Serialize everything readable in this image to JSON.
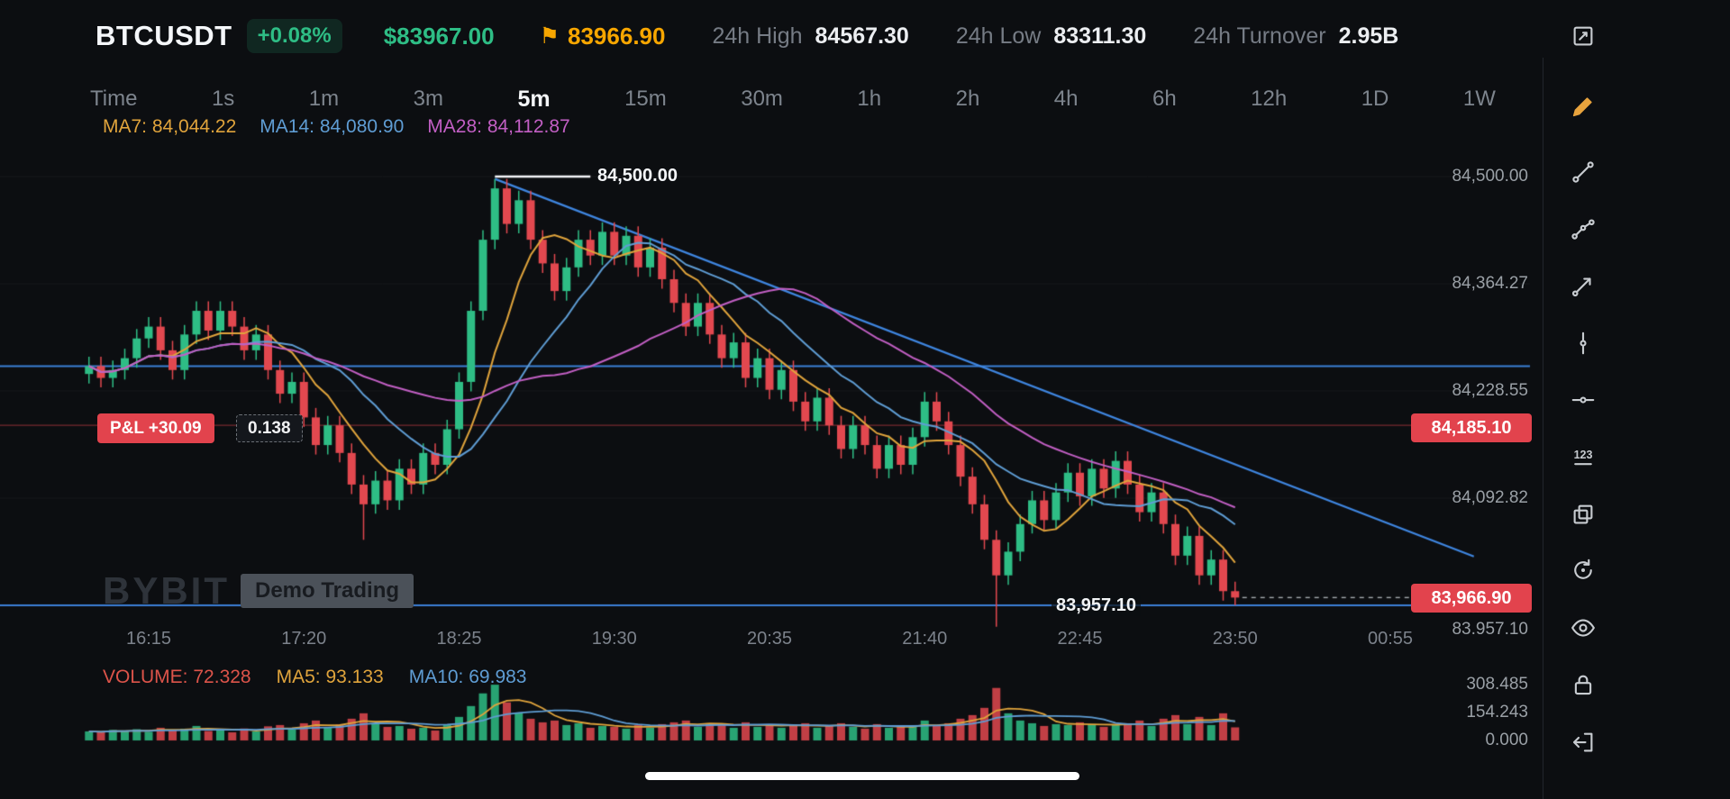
{
  "colors": {
    "bg": "#0c0e11",
    "green": "#2ebd85",
    "red": "#e2484f",
    "ma7": "#e0a43c",
    "ma14": "#5f9dd4",
    "ma28": "#c25fc4",
    "blue_line": "#3b7fd6",
    "trend_line": "#3f86e0",
    "tag_red_bg": "#e2434d",
    "accent_orange": "#f7a600"
  },
  "header": {
    "symbol": "BTCUSDT",
    "change_badge": "+0.08%",
    "usd_price": "$83967.00",
    "flag_price": "83966.90",
    "stats": [
      {
        "label": "24h High",
        "value": "84567.30"
      },
      {
        "label": "24h Low",
        "value": "83311.30"
      },
      {
        "label": "24h Turnover",
        "value": "2.95B"
      }
    ]
  },
  "tabs": {
    "items": [
      "Time",
      "1s",
      "1m",
      "3m",
      "5m",
      "15m",
      "30m",
      "1h",
      "2h",
      "4h",
      "6h",
      "12h",
      "1D",
      "1W"
    ],
    "selected": "5m"
  },
  "indicators": {
    "price_mas": [
      {
        "label": "MA7:",
        "value": "84,044.22"
      },
      {
        "label": "MA14:",
        "value": "84,080.90"
      },
      {
        "label": "MA28:",
        "value": "84,112.87"
      }
    ],
    "volume_row": [
      {
        "label": "VOLUME:",
        "value": "72.328"
      },
      {
        "label": "MA5:",
        "value": "93.133"
      },
      {
        "label": "MA10:",
        "value": "69.983"
      }
    ]
  },
  "overlay_labels": {
    "high_level": "84,500.00",
    "pnl": "P&L +30.09",
    "qty": "0.138",
    "entry_tag": "84,185.10",
    "last_tag": "83,966.90",
    "line_label": "83,957.10",
    "partial_axis_label": "83,957.10"
  },
  "watermark": {
    "brand": "BYBIT",
    "badge": "Demo Trading"
  },
  "toolbar": [
    "screenshot-icon",
    "pencil-icon",
    "trendline-icon",
    "multipoint-icon",
    "trend-arrow-icon",
    "vertical-line-icon",
    "horizontal-line-icon",
    "numbers-icon",
    "copy-icon",
    "undo-icon",
    "eye-icon",
    "lock-icon",
    "exit-icon"
  ],
  "chart_data": {
    "type": "candlestick",
    "symbol": "BTCUSDT",
    "interval": "5m",
    "x_tick_labels": [
      "16:15",
      "17:20",
      "18:25",
      "19:30",
      "20:35",
      "21:40",
      "22:45",
      "23:50",
      "00:55"
    ],
    "x_tick_indices": [
      5,
      18,
      31,
      44,
      57,
      70,
      83,
      96,
      109
    ],
    "y_axis": {
      "tick_labels": [
        "84,500.00",
        "84,364.27",
        "84,228.55",
        "84,092.82",
        "83,957.10"
      ],
      "tick_values": [
        84500.0,
        84364.27,
        84228.55,
        84092.82,
        83957.1
      ]
    },
    "ylim": [
      83925,
      84530
    ],
    "candles_ohlc": [
      [
        84250,
        84272,
        84238,
        84260
      ],
      [
        84260,
        84272,
        84233,
        84245
      ],
      [
        84245,
        84267,
        84233,
        84255
      ],
      [
        84255,
        84282,
        84243,
        84270
      ],
      [
        84270,
        84307,
        84258,
        84295
      ],
      [
        84295,
        84322,
        84283,
        84310
      ],
      [
        84310,
        84322,
        84268,
        84280
      ],
      [
        84280,
        84292,
        84243,
        84255
      ],
      [
        84255,
        84312,
        84243,
        84300
      ],
      [
        84300,
        84342,
        84288,
        84330
      ],
      [
        84330,
        84342,
        84293,
        84305
      ],
      [
        84305,
        84342,
        84293,
        84330
      ],
      [
        84330,
        84342,
        84298,
        84310
      ],
      [
        84310,
        84322,
        84268,
        84280
      ],
      [
        84280,
        84312,
        84268,
        84300
      ],
      [
        84300,
        84312,
        84243,
        84255
      ],
      [
        84255,
        84267,
        84213,
        84225
      ],
      [
        84225,
        84252,
        84213,
        84240
      ],
      [
        84240,
        84252,
        84183,
        84195
      ],
      [
        84195,
        84207,
        84148,
        84160
      ],
      [
        84160,
        84197,
        84148,
        84185
      ],
      [
        84185,
        84197,
        84138,
        84150
      ],
      [
        84150,
        84162,
        84098,
        84110
      ],
      [
        84110,
        84122,
        84040,
        84085
      ],
      [
        84085,
        84127,
        84073,
        84115
      ],
      [
        84115,
        84127,
        84078,
        84090
      ],
      [
        84090,
        84142,
        84078,
        84130
      ],
      [
        84130,
        84142,
        84098,
        84110
      ],
      [
        84110,
        84162,
        84098,
        84150
      ],
      [
        84150,
        84162,
        84123,
        84135
      ],
      [
        84135,
        84192,
        84123,
        84180
      ],
      [
        84180,
        84252,
        84168,
        84240
      ],
      [
        84240,
        84342,
        84228,
        84330
      ],
      [
        84330,
        84432,
        84318,
        84420
      ],
      [
        84420,
        84497,
        84408,
        84485
      ],
      [
        84485,
        84497,
        84428,
        84440
      ],
      [
        84440,
        84482,
        84428,
        84470
      ],
      [
        84470,
        84482,
        84408,
        84420
      ],
      [
        84420,
        84432,
        84378,
        84390
      ],
      [
        84390,
        84402,
        84343,
        84355
      ],
      [
        84355,
        84397,
        84343,
        84385
      ],
      [
        84385,
        84432,
        84373,
        84420
      ],
      [
        84420,
        84432,
        84388,
        84400
      ],
      [
        84400,
        84442,
        84388,
        84430
      ],
      [
        84430,
        84442,
        84388,
        84400
      ],
      [
        84400,
        84437,
        84388,
        84425
      ],
      [
        84425,
        84437,
        84373,
        84385
      ],
      [
        84385,
        84422,
        84373,
        84410
      ],
      [
        84410,
        84422,
        84358,
        84370
      ],
      [
        84370,
        84382,
        84328,
        84340
      ],
      [
        84340,
        84352,
        84298,
        84310
      ],
      [
        84310,
        84352,
        84298,
        84340
      ],
      [
        84340,
        84352,
        84288,
        84300
      ],
      [
        84300,
        84312,
        84258,
        84270
      ],
      [
        84270,
        84302,
        84258,
        84290
      ],
      [
        84290,
        84302,
        84233,
        84245
      ],
      [
        84245,
        84282,
        84233,
        84270
      ],
      [
        84270,
        84282,
        84218,
        84230
      ],
      [
        84230,
        84267,
        84218,
        84255
      ],
      [
        84255,
        84267,
        84203,
        84215
      ],
      [
        84215,
        84227,
        84178,
        84190
      ],
      [
        84190,
        84232,
        84178,
        84220
      ],
      [
        84220,
        84232,
        84173,
        84185
      ],
      [
        84185,
        84197,
        84143,
        84155
      ],
      [
        84155,
        84197,
        84143,
        84185
      ],
      [
        84185,
        84197,
        84148,
        84160
      ],
      [
        84160,
        84172,
        84118,
        84130
      ],
      [
        84130,
        84172,
        84118,
        84160
      ],
      [
        84160,
        84172,
        84123,
        84135
      ],
      [
        84135,
        84182,
        84123,
        84170
      ],
      [
        84170,
        84227,
        84158,
        84215
      ],
      [
        84215,
        84227,
        84178,
        84190
      ],
      [
        84190,
        84202,
        84148,
        84160
      ],
      [
        84160,
        84172,
        84108,
        84120
      ],
      [
        84120,
        84132,
        84073,
        84085
      ],
      [
        84085,
        84097,
        84028,
        84040
      ],
      [
        84040,
        84052,
        83930,
        83995
      ],
      [
        83995,
        84037,
        83983,
        84025
      ],
      [
        84025,
        84072,
        84013,
        84060
      ],
      [
        84060,
        84102,
        84048,
        84090
      ],
      [
        84090,
        84102,
        84053,
        84065
      ],
      [
        84065,
        84112,
        84053,
        84100
      ],
      [
        84100,
        84137,
        84088,
        84125
      ],
      [
        84125,
        84137,
        84083,
        84095
      ],
      [
        84095,
        84142,
        84083,
        84130
      ],
      [
        84130,
        84142,
        84093,
        84105
      ],
      [
        84105,
        84152,
        84093,
        84140
      ],
      [
        84140,
        84152,
        84098,
        84110
      ],
      [
        84110,
        84122,
        84063,
        84075
      ],
      [
        84075,
        84112,
        84063,
        84100
      ],
      [
        84100,
        84112,
        84048,
        84060
      ],
      [
        84060,
        84072,
        84008,
        84020
      ],
      [
        84020,
        84057,
        84008,
        84045
      ],
      [
        84045,
        84057,
        83983,
        83995
      ],
      [
        83995,
        84027,
        83983,
        84015
      ],
      [
        84015,
        84027,
        83963,
        83975
      ],
      [
        83975,
        83987,
        83957.1,
        83966.9
      ]
    ],
    "volume": {
      "values": [
        50,
        45,
        58,
        55,
        62,
        48,
        70,
        58,
        65,
        80,
        52,
        60,
        45,
        66,
        50,
        78,
        85,
        60,
        95,
        110,
        70,
        88,
        120,
        150,
        90,
        75,
        80,
        65,
        70,
        55,
        85,
        130,
        190,
        260,
        308,
        210,
        150,
        120,
        100,
        110,
        85,
        95,
        70,
        80,
        75,
        65,
        85,
        70,
        90,
        100,
        110,
        75,
        95,
        85,
        70,
        100,
        75,
        90,
        70,
        85,
        95,
        70,
        80,
        95,
        75,
        65,
        90,
        70,
        80,
        75,
        110,
        85,
        95,
        120,
        140,
        180,
        290,
        150,
        110,
        95,
        80,
        90,
        85,
        100,
        90,
        75,
        85,
        95,
        110,
        80,
        120,
        140,
        90,
        130,
        85,
        150,
        72.3
      ],
      "axis_labels": [
        "308.485",
        "154.243",
        "0.000"
      ],
      "axis_values": [
        308.485,
        154.243,
        0
      ],
      "current": 72.328,
      "ma5": 93.133,
      "ma10": 69.983
    },
    "ma_overlays": {
      "periods": [
        7,
        14,
        28
      ],
      "ma7": 84044.22,
      "ma14": 84080.9,
      "ma28": 84112.87
    },
    "drawings": {
      "trendline": {
        "i1": 34,
        "p1": 84497,
        "i2": 116,
        "p2": 84019
      },
      "hlines_blue": [
        84260,
        83957.1
      ],
      "entry_line": 84185.1,
      "high_line": {
        "price": 84500,
        "i1": 34,
        "i2": 42
      },
      "last_price": 83966.9
    }
  }
}
